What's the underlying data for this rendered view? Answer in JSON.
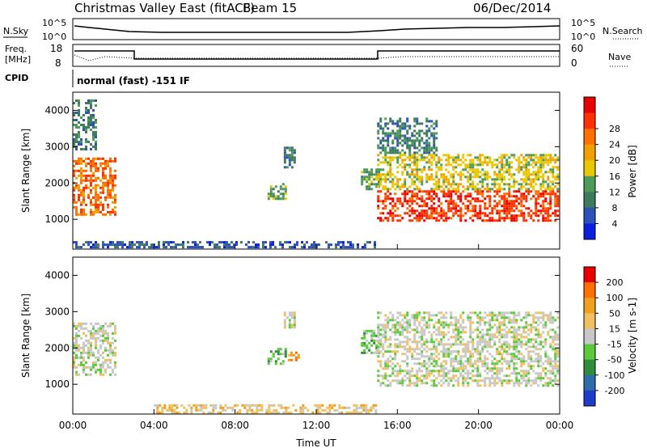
{
  "header": {
    "title": "Christmas Valley East (fitACF)",
    "beam": "Beam 15",
    "date": "06/Dec/2014"
  },
  "status_panels": {
    "nsky_label": "N.Sky",
    "nsearch_label": "N.Search",
    "freq_label_1": "Freq.",
    "freq_label_2": "[MHz]",
    "nave_label": "Nave",
    "cpid_label": "CPID",
    "cpid_value": "normal (fast) -151 IF",
    "noise_ticks_left": [
      "10^5",
      "10^0"
    ],
    "noise_ticks_right": [
      "10^5",
      "10^0"
    ],
    "freq_ticks": [
      "18",
      "8"
    ],
    "nave_ticks": [
      "60",
      "0"
    ]
  },
  "colors": {
    "power": [
      "#0a1edc",
      "#2c52b8",
      "#3e7a5e",
      "#4d9a5a",
      "#e8c800",
      "#f0a000",
      "#ff7000",
      "#ff3000",
      "#e80000"
    ],
    "velocity": [
      "#1e3cc8",
      "#2d6ea8",
      "#2e8c3c",
      "#5cc83c",
      "#c8c8c8",
      "#f0c060",
      "#f0a020",
      "#ff7000",
      "#e80000"
    ]
  },
  "chart_data": [
    {
      "type": "heatmap",
      "name": "power",
      "xlabel": "",
      "ylabel": "Slant Range [km]",
      "xlim": [
        0,
        24
      ],
      "ylim": [
        180,
        4500
      ],
      "y_ticks": [
        "1000",
        "2000",
        "3000",
        "4000"
      ],
      "x_ticks": [
        "00:00",
        "04:00",
        "08:00",
        "12:00",
        "16:00",
        "20:00",
        "00:00"
      ],
      "colorbar_label": "Power [dB]",
      "colorbar_ticks": [
        "4",
        "8",
        "12",
        "16",
        "20",
        "24",
        "28"
      ],
      "regions": [
        {
          "t0": 0.0,
          "t1": 2.2,
          "r0": 1100,
          "r1": 2700,
          "level": 6
        },
        {
          "t0": 0.0,
          "t1": 1.2,
          "r0": 2900,
          "r1": 4300,
          "level": 2
        },
        {
          "t0": 9.6,
          "t1": 10.6,
          "r0": 1500,
          "r1": 2000,
          "level": 3
        },
        {
          "t0": 10.4,
          "t1": 11.0,
          "r0": 2400,
          "r1": 3000,
          "level": 2
        },
        {
          "t0": 14.2,
          "t1": 15.2,
          "r0": 1800,
          "r1": 2400,
          "level": 3
        },
        {
          "t0": 15.0,
          "t1": 24.0,
          "r0": 900,
          "r1": 1800,
          "level": 7
        },
        {
          "t0": 15.0,
          "t1": 24.0,
          "r0": 1800,
          "r1": 2800,
          "level": 4
        },
        {
          "t0": 15.0,
          "t1": 18.0,
          "r0": 2800,
          "r1": 3800,
          "level": 2
        },
        {
          "t0": 0.0,
          "t1": 15.0,
          "r0": 180,
          "r1": 400,
          "level": 1
        }
      ]
    },
    {
      "type": "heatmap",
      "name": "velocity",
      "xlabel": "Time UT",
      "ylabel": "Slant Range [km]",
      "xlim": [
        0,
        24
      ],
      "ylim": [
        180,
        4500
      ],
      "y_ticks": [
        "1000",
        "2000",
        "3000",
        "4000"
      ],
      "x_ticks": [
        "00:00",
        "04:00",
        "08:00",
        "12:00",
        "16:00",
        "20:00",
        "00:00"
      ],
      "colorbar_label": "Velocity [m s-1]",
      "colorbar_ticks": [
        "200",
        "100",
        "50",
        "15",
        "-15",
        "-50",
        "-100",
        "-200"
      ],
      "regions": [
        {
          "t0": 0.0,
          "t1": 2.2,
          "r0": 1200,
          "r1": 2700,
          "level": 4
        },
        {
          "t0": 9.6,
          "t1": 10.6,
          "r0": 1500,
          "r1": 2000,
          "level": 3
        },
        {
          "t0": 10.6,
          "t1": 11.2,
          "r0": 1600,
          "r1": 1900,
          "level": 6
        },
        {
          "t0": 10.4,
          "t1": 11.0,
          "r0": 2500,
          "r1": 3000,
          "level": 4
        },
        {
          "t0": 14.2,
          "t1": 15.2,
          "r0": 1800,
          "r1": 2500,
          "level": 3
        },
        {
          "t0": 15.0,
          "t1": 24.0,
          "r0": 900,
          "r1": 2000,
          "level": 4
        },
        {
          "t0": 15.0,
          "t1": 24.0,
          "r0": 2000,
          "r1": 3000,
          "level": 4
        },
        {
          "t0": 4.0,
          "t1": 15.0,
          "r0": 180,
          "r1": 450,
          "level": 5
        }
      ]
    }
  ]
}
